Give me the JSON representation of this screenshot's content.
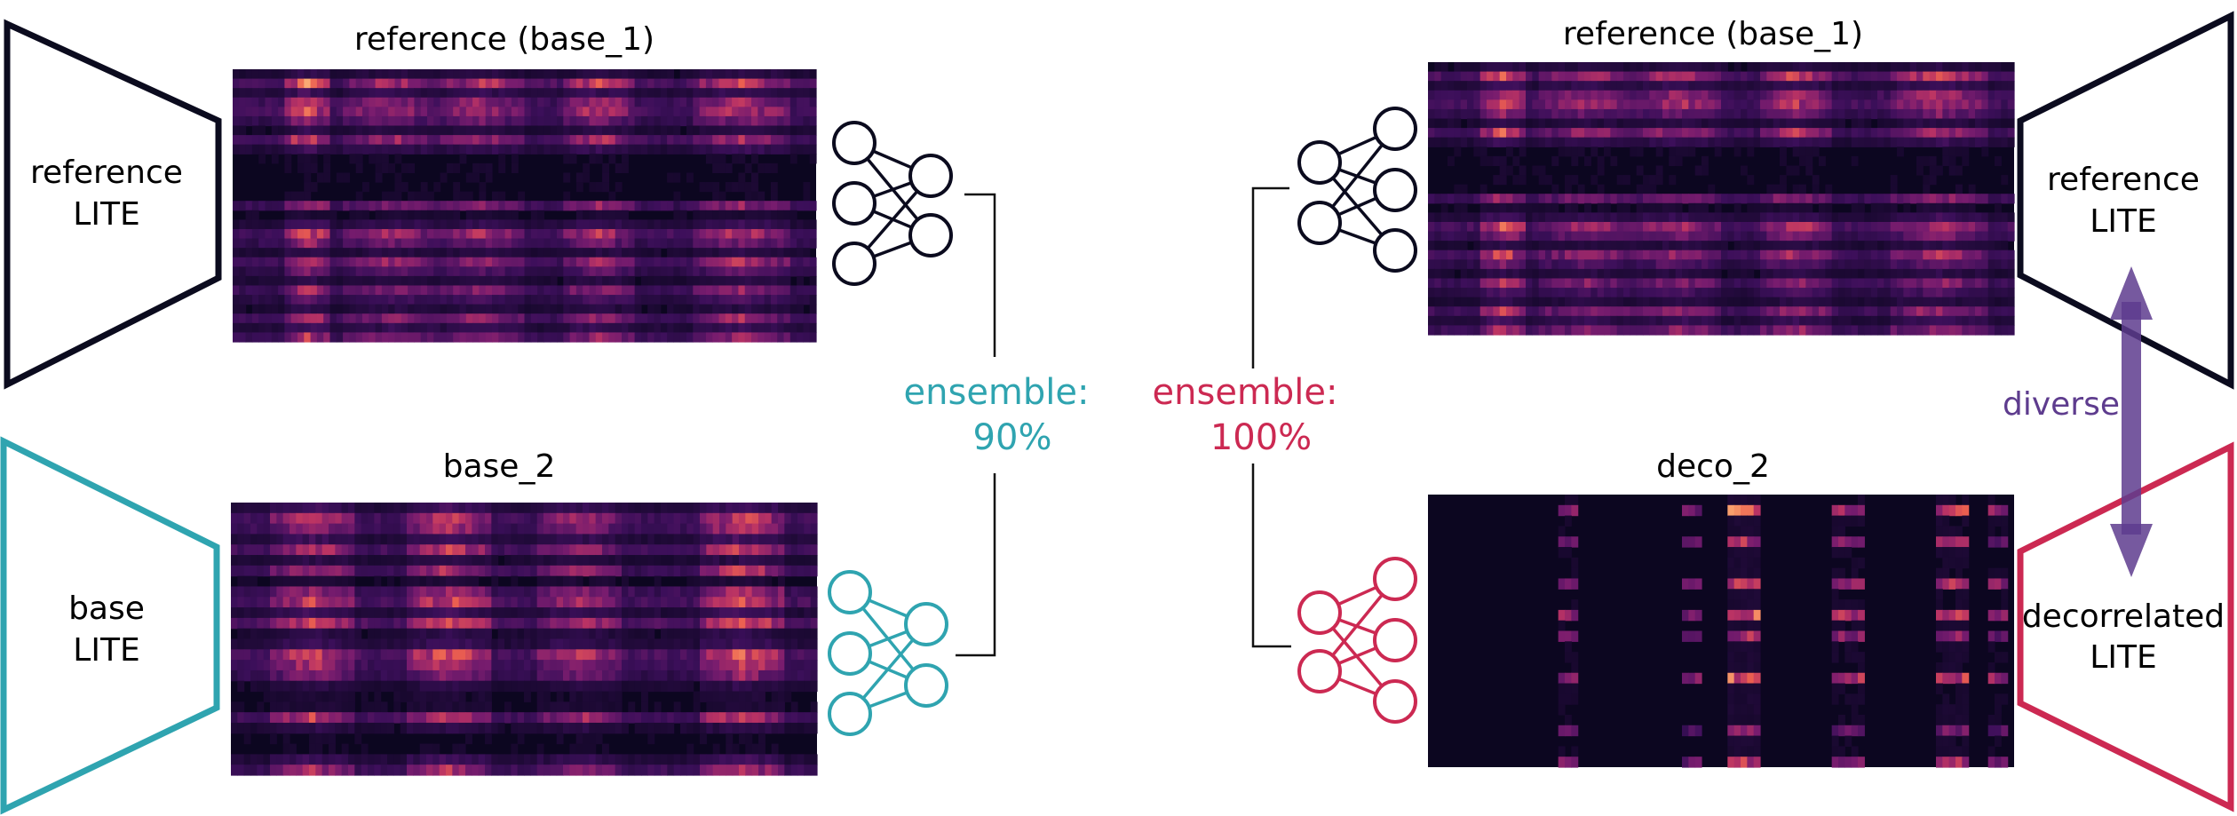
{
  "colors": {
    "dark": "#0b0b1e",
    "teal": "#2fa4b0",
    "crimson": "#cc2952",
    "purple": "#5e3c8e",
    "heatmap_bg": "#0c0620"
  },
  "left": {
    "encoder_top": {
      "label_line1": "reference",
      "label_line2": "LITE"
    },
    "encoder_bottom": {
      "label_line1": "base",
      "label_line2": "LITE"
    },
    "heatmap_top_title": "reference (base_1)",
    "heatmap_bottom_title": "base_2",
    "ensemble": {
      "label": "ensemble:",
      "value": "90%"
    }
  },
  "right": {
    "encoder_top": {
      "label_line1": "reference",
      "label_line2": "LITE"
    },
    "encoder_bottom": {
      "label_line1": "decorrelated",
      "label_line2": "LITE"
    },
    "heatmap_top_title": "reference (base_1)",
    "heatmap_bottom_title": "deco_2",
    "ensemble": {
      "label": "ensemble:",
      "value": "100%"
    },
    "arrow_label": "diverse"
  },
  "icons": {
    "network": "neural-network-icon",
    "arrow": "double-headed-arrow-icon"
  }
}
